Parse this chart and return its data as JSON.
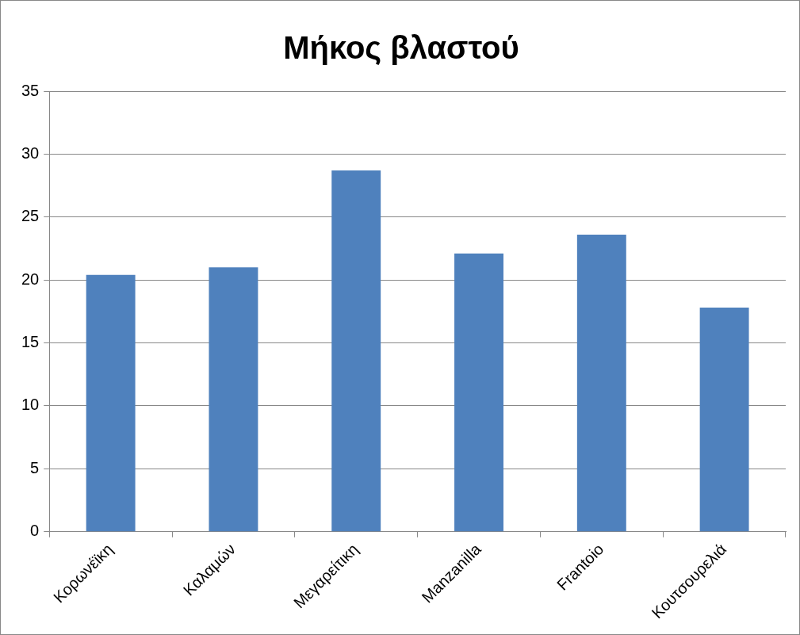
{
  "chart_data": {
    "type": "bar",
    "title": "Μήκος βλαστού",
    "categories": [
      "Κορωνέϊκη",
      "Καλαμών",
      "Μεγαρείτικη",
      "Manzanilla",
      "Frantoio",
      "Κουτσουρελιά"
    ],
    "values": [
      20.4,
      21.0,
      28.7,
      22.1,
      23.6,
      17.8
    ],
    "color": "#4f81bd",
    "ylim": [
      0,
      35
    ],
    "yticks": [
      0,
      5,
      10,
      15,
      20,
      25,
      30,
      35
    ],
    "grid": "y",
    "legend": false
  }
}
